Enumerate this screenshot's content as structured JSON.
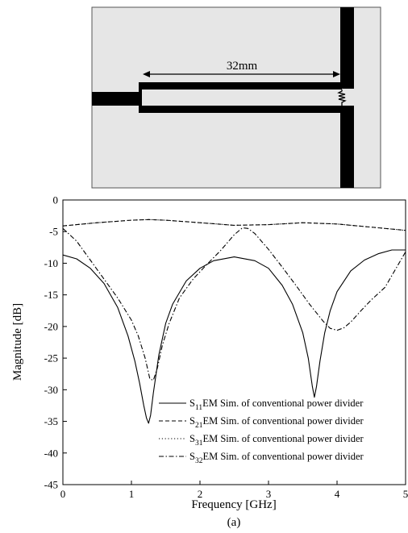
{
  "layout_diagram": {
    "background_color": "#e6e6e6",
    "trace_color": "#000000",
    "dimension_label": "32mm"
  },
  "caption": "(a)",
  "chart_data": {
    "type": "line",
    "title": "",
    "xlabel": "Frequency [GHz]",
    "ylabel": "Magnitude [dB]",
    "xlim": [
      0,
      5
    ],
    "ylim": [
      -45,
      0
    ],
    "x_ticks": [
      0,
      1,
      2,
      3,
      4,
      5
    ],
    "y_ticks": [
      0,
      -5,
      -10,
      -15,
      -20,
      -25,
      -30,
      -35,
      -40,
      -45
    ],
    "grid": false,
    "legend_position": "bottom-right",
    "series": [
      {
        "name": "S11EM Sim. of conventional power divider",
        "label_main": "S",
        "label_sub": "11",
        "label_rest": "EM Sim. of conventional power divider",
        "style": "solid",
        "x": [
          0,
          0.2,
          0.4,
          0.6,
          0.8,
          0.95,
          1.05,
          1.12,
          1.18,
          1.22,
          1.25,
          1.28,
          1.32,
          1.4,
          1.5,
          1.6,
          1.8,
          2.0,
          2.2,
          2.5,
          2.8,
          3.0,
          3.2,
          3.35,
          3.5,
          3.58,
          3.64,
          3.67,
          3.7,
          3.75,
          3.82,
          3.9,
          4.0,
          4.2,
          4.4,
          4.6,
          4.8,
          5.0
        ],
        "y": [
          -8.7,
          -9.3,
          -10.8,
          -13.2,
          -17.0,
          -21.5,
          -25.5,
          -29.0,
          -32.5,
          -34.5,
          -35.3,
          -34.0,
          -30.5,
          -24.5,
          -19.5,
          -16.5,
          -12.8,
          -10.8,
          -9.6,
          -9.0,
          -9.6,
          -10.8,
          -13.5,
          -16.5,
          -21.0,
          -25.0,
          -29.5,
          -31.2,
          -29.5,
          -25.5,
          -21.0,
          -17.5,
          -14.5,
          -11.2,
          -9.5,
          -8.5,
          -7.9,
          -7.9
        ]
      },
      {
        "name": "S21EM Sim. of conventional power divider",
        "label_main": "S",
        "label_sub": "21",
        "label_rest": "EM Sim. of conventional power divider",
        "style": "dashed",
        "x": [
          0,
          0.5,
          1.0,
          1.25,
          1.5,
          2.0,
          2.5,
          3.0,
          3.5,
          4.0,
          4.5,
          5.0
        ],
        "y": [
          -4.1,
          -3.6,
          -3.2,
          -3.1,
          -3.2,
          -3.6,
          -4.0,
          -3.9,
          -3.6,
          -3.8,
          -4.3,
          -4.8
        ]
      },
      {
        "name": "S31EM Sim. of conventional power divider",
        "label_main": "S",
        "label_sub": "31",
        "label_rest": "EM Sim. of conventional power divider",
        "style": "dotted",
        "x": [
          0,
          0.5,
          1.0,
          1.25,
          1.5,
          2.0,
          2.5,
          3.0,
          3.5,
          4.0,
          4.5,
          5.0
        ],
        "y": [
          -4.1,
          -3.6,
          -3.2,
          -3.1,
          -3.2,
          -3.6,
          -4.0,
          -3.9,
          -3.6,
          -3.8,
          -4.3,
          -4.8
        ]
      },
      {
        "name": "S32EM Sim. of conventional power divider",
        "label_main": "S",
        "label_sub": "32",
        "label_rest": "EM Sim. of conventional power divider",
        "style": "dashdot",
        "x": [
          0,
          0.2,
          0.4,
          0.6,
          0.8,
          1.0,
          1.1,
          1.2,
          1.27,
          1.32,
          1.38,
          1.45,
          1.55,
          1.7,
          1.9,
          2.1,
          2.3,
          2.5,
          2.62,
          2.7,
          2.8,
          3.0,
          3.2,
          3.4,
          3.6,
          3.8,
          3.9,
          4.0,
          4.1,
          4.2,
          4.35,
          4.5,
          4.7,
          4.85,
          5.0
        ],
        "y": [
          -4.5,
          -6.5,
          -9.5,
          -12.5,
          -15.5,
          -19.0,
          -21.5,
          -25.0,
          -28.3,
          -28.5,
          -26.5,
          -23.0,
          -19.5,
          -15.5,
          -12.5,
          -10.2,
          -8.0,
          -5.5,
          -4.4,
          -4.5,
          -5.3,
          -7.8,
          -10.6,
          -13.5,
          -16.5,
          -19.2,
          -20.3,
          -20.6,
          -20.2,
          -19.3,
          -17.5,
          -15.8,
          -13.8,
          -11.0,
          -8.2
        ]
      }
    ]
  }
}
